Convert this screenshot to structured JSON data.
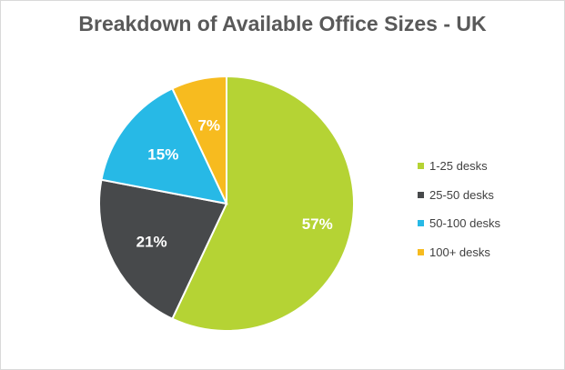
{
  "chart_data": {
    "type": "pie",
    "title": "Breakdown of Available Office Sizes - UK",
    "categories": [
      "1-25 desks",
      "25-50 desks",
      "50-100 desks",
      "100+ desks"
    ],
    "values": [
      57,
      21,
      15,
      7
    ],
    "labels": [
      "57%",
      "21%",
      "15%",
      "7%"
    ],
    "colors": [
      "#b5d334",
      "#47494b",
      "#27b9e6",
      "#f7bb1f"
    ],
    "legend_position": "right"
  }
}
